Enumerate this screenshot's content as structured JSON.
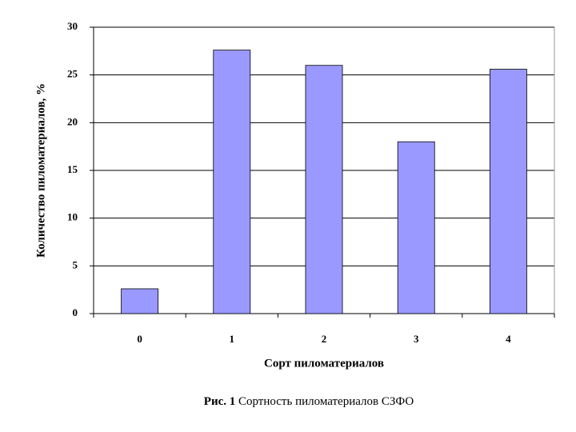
{
  "chart_data": {
    "type": "bar",
    "categories": [
      "0",
      "1",
      "2",
      "3",
      "4"
    ],
    "values": [
      2.6,
      27.6,
      26.0,
      18.0,
      25.6
    ],
    "color": "#9999ff",
    "ylim": [
      0,
      30
    ],
    "yticks": [
      0,
      5,
      10,
      15,
      20,
      25,
      30
    ],
    "grid": true,
    "xlabel": "Сорт пиломатериалов",
    "ylabel": "Количество пиломатериалов, %",
    "caption_label": "Рис. 1",
    "caption": "Сортность пиломатериалов СЗФО"
  }
}
